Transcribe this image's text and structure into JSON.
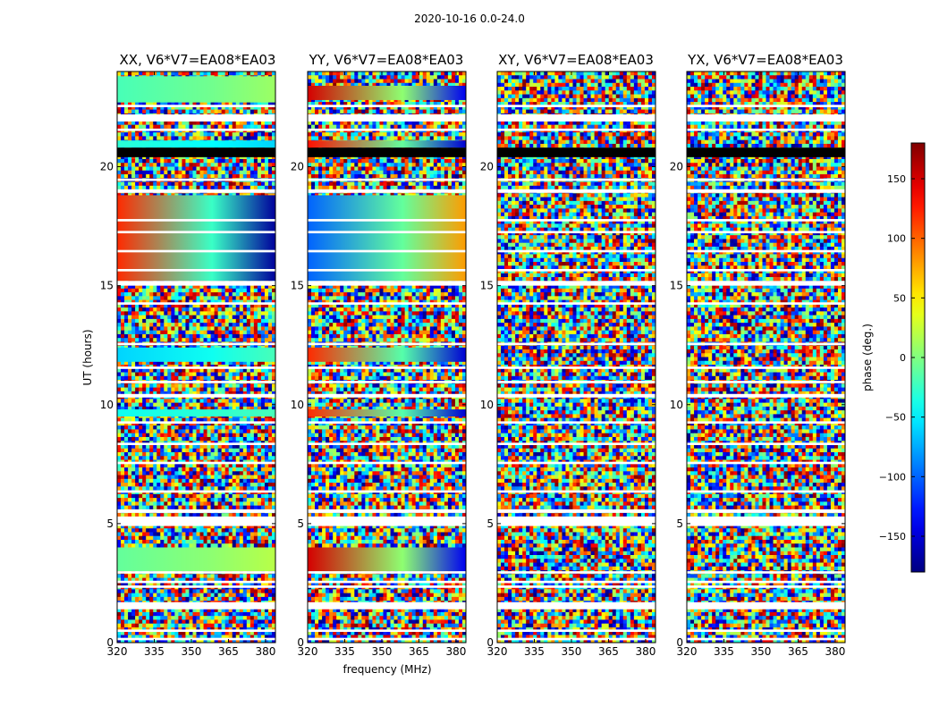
{
  "suptitle": "2020-10-16 0.0-24.0",
  "chart_data": [
    {
      "type": "heatmap",
      "title": "XX, V6*V7=EA08*EA03",
      "xlabel": "",
      "ylabel": "UT (hours)",
      "x_range_MHz": [
        320,
        384
      ],
      "y_range_hours": [
        0,
        24
      ],
      "x_ticks": [
        "320",
        "335",
        "350",
        "365",
        "380"
      ],
      "y_ticks": [
        "0",
        "5",
        "10",
        "15",
        "20"
      ],
      "coherent_bands": [
        {
          "y": [
            22.7,
            23.8
          ],
          "phase_start": -20,
          "phase_end": 10
        },
        {
          "y": [
            20.8,
            21.1
          ],
          "phase_start": -30,
          "phase_end": -60
        },
        {
          "y": [
            15.2,
            18.8
          ],
          "phase_start": 120,
          "phase_end": -170
        },
        {
          "y": [
            11.8,
            12.4
          ],
          "phase_start": -60,
          "phase_end": -20
        },
        {
          "y": [
            9.5,
            9.8
          ],
          "phase_start": -40,
          "phase_end": -20
        },
        {
          "y": [
            3.0,
            4.0
          ],
          "phase_start": -10,
          "phase_end": 20
        }
      ]
    },
    {
      "type": "heatmap",
      "title": "YY, V6*V7=EA08*EA03",
      "xlabel": "frequency (MHz)",
      "ylabel": "",
      "x_range_MHz": [
        320,
        384
      ],
      "y_range_hours": [
        0,
        24
      ],
      "x_ticks": [
        "320",
        "335",
        "350",
        "365",
        "380"
      ],
      "y_ticks": [
        "0",
        "5",
        "10",
        "15",
        "20"
      ],
      "coherent_bands": [
        {
          "y": [
            22.8,
            23.4
          ],
          "phase_start": 150,
          "phase_end": -140
        },
        {
          "y": [
            20.8,
            21.1
          ],
          "phase_start": 130,
          "phase_end": -150
        },
        {
          "y": [
            15.2,
            18.8
          ],
          "phase_start": -100,
          "phase_end": 80
        },
        {
          "y": [
            11.8,
            12.4
          ],
          "phase_start": 120,
          "phase_end": -150
        },
        {
          "y": [
            9.5,
            9.8
          ],
          "phase_start": 120,
          "phase_end": -150
        },
        {
          "y": [
            3.0,
            4.0
          ],
          "phase_start": 150,
          "phase_end": -140
        }
      ]
    },
    {
      "type": "heatmap",
      "title": "XY, V6*V7=EA08*EA03",
      "xlabel": "",
      "ylabel": "",
      "x_range_MHz": [
        320,
        384
      ],
      "y_range_hours": [
        0,
        24
      ],
      "x_ticks": [
        "320",
        "335",
        "350",
        "365",
        "380"
      ],
      "y_ticks": [
        "0",
        "5",
        "10",
        "15",
        "20"
      ],
      "coherent_bands": []
    },
    {
      "type": "heatmap",
      "title": "YX, V6*V7=EA08*EA03",
      "xlabel": "",
      "ylabel": "",
      "x_range_MHz": [
        320,
        384
      ],
      "y_range_hours": [
        0,
        24
      ],
      "x_ticks": [
        "320",
        "335",
        "350",
        "365",
        "380"
      ],
      "y_ticks": [
        "0",
        "5",
        "10",
        "15",
        "20"
      ],
      "coherent_bands": []
    }
  ],
  "colorbar": {
    "label": "phase (deg.)",
    "range": [
      -180,
      180
    ],
    "ticks": [
      {
        "value": 150,
        "label": "150"
      },
      {
        "value": 100,
        "label": "100"
      },
      {
        "value": 50,
        "label": "50"
      },
      {
        "value": 0,
        "label": "0"
      },
      {
        "value": -50,
        "label": "−50"
      },
      {
        "value": -100,
        "label": "−100"
      },
      {
        "value": -150,
        "label": "−150"
      }
    ],
    "colormap": "jet"
  },
  "flagged_hours": [
    [
      0.1,
      0.2
    ],
    [
      0.45,
      0.55
    ],
    [
      1.4,
      1.7
    ],
    [
      2.3,
      2.4
    ],
    [
      2.5,
      2.6
    ],
    [
      2.9,
      3.0
    ],
    [
      4.9,
      5.3
    ],
    [
      5.45,
      5.6
    ],
    [
      6.3,
      6.4
    ],
    [
      7.5,
      7.6
    ],
    [
      8.3,
      8.4
    ],
    [
      9.2,
      9.3
    ],
    [
      10.3,
      10.45
    ],
    [
      10.9,
      11.0
    ],
    [
      11.5,
      11.6
    ],
    [
      12.5,
      12.6
    ],
    [
      14.2,
      14.3
    ],
    [
      15.0,
      15.2
    ],
    [
      15.6,
      15.7
    ],
    [
      16.4,
      16.5
    ],
    [
      17.2,
      17.3
    ],
    [
      17.7,
      17.8
    ],
    [
      18.9,
      19.05
    ],
    [
      19.4,
      19.5
    ],
    [
      21.5,
      21.6
    ],
    [
      21.9,
      22.2
    ],
    [
      22.5,
      22.6
    ]
  ],
  "dark_hours": [
    [
      20.4,
      20.8
    ]
  ]
}
